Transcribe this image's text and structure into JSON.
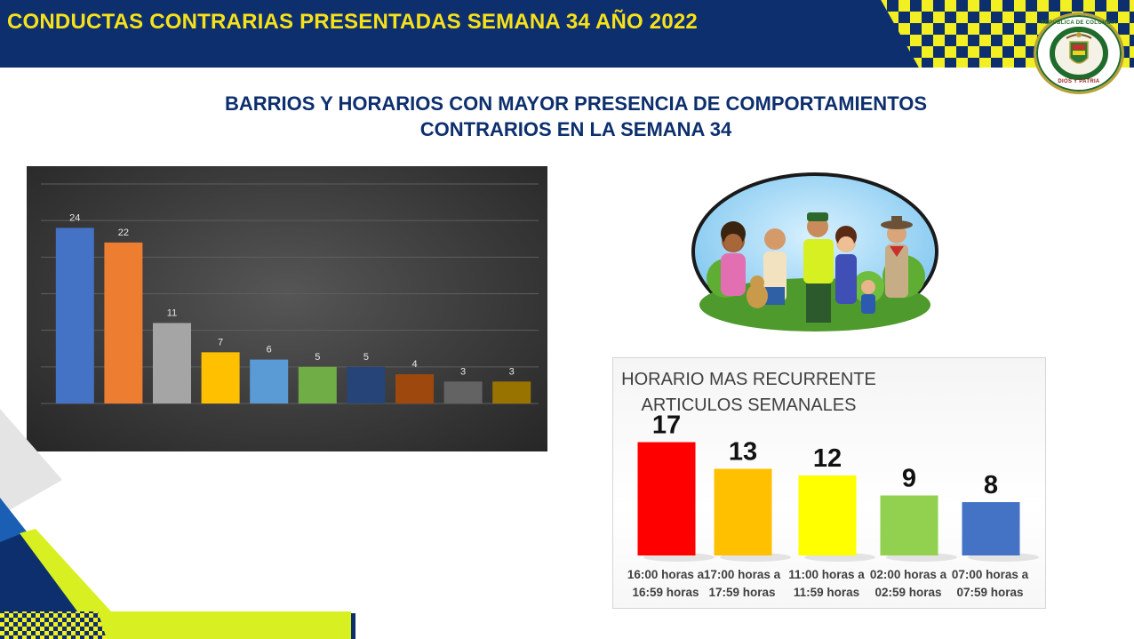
{
  "header": {
    "title": "CONDUCTAS CONTRARIAS PRESENTADAS SEMANA 34 AÑO 2022",
    "seal_top_text": "REPÚBLICA DE COLOMBIA",
    "seal_bottom_text": "DIOS Y PATRIA"
  },
  "subtitle": {
    "line1": "BARRIOS Y HORARIOS CON MAYOR PRESENCIA DE COMPORTAMIENTOS",
    "line2": "CONTRARIOS EN LA SEMANA 34"
  },
  "colors": {
    "header_bg": "#0d2f6e",
    "header_title": "#f7e21a",
    "checker_yellow": "#f2ef22",
    "accent_lime": "#d8f021"
  },
  "icons": {
    "seal": "police-seal-icon",
    "illustration": "community-police-illustration"
  },
  "chart_data": [
    {
      "type": "bar",
      "title": "",
      "categories": [
        "",
        "",
        "",
        "",
        "",
        "",
        "",
        "",
        "",
        ""
      ],
      "values": [
        24,
        22,
        11,
        7,
        6,
        5,
        5,
        4,
        3,
        3
      ],
      "colors": [
        "#4472c4",
        "#ed7d31",
        "#a5a5a5",
        "#ffc000",
        "#5b9bd5",
        "#70ad47",
        "#264478",
        "#9e480e",
        "#636363",
        "#997300"
      ],
      "ylim": [
        0,
        30
      ],
      "grid": true,
      "data_labels": true
    },
    {
      "type": "bar",
      "title": "HORARIO MAS RECURRENTE ARTICULOS SEMANALES",
      "title_lines": [
        "HORARIO MAS RECURRENTE",
        "ARTICULOS SEMANALES"
      ],
      "categories": [
        [
          "16:00 horas a",
          "16:59 horas"
        ],
        [
          "17:00 horas a",
          "17:59 horas"
        ],
        [
          "11:00 horas a",
          "11:59 horas"
        ],
        [
          "02:00 horas a",
          "02:59 horas"
        ],
        [
          "07:00 horas a",
          "07:59 horas"
        ]
      ],
      "values": [
        17,
        13,
        12,
        9,
        8
      ],
      "colors": [
        "#ff0000",
        "#ffc000",
        "#ffff00",
        "#92d050",
        "#4472c4"
      ],
      "ylim": [
        0,
        20
      ],
      "grid": false,
      "data_labels": true
    }
  ]
}
